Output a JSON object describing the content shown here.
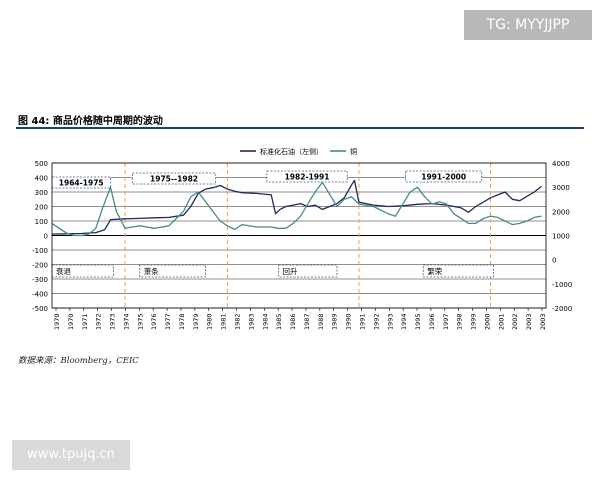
{
  "watermarks": {
    "top": "TG: MYYJJPP",
    "bottom": "www.tpujq.cn"
  },
  "figure": {
    "title": "图 44: 商品价格随中周期的波动",
    "source": "数据来源：Bloomberg，CEIC"
  },
  "colors": {
    "oil": "#1f2a5a",
    "copper": "#4a8a8a",
    "periods": "#f0a050",
    "box": "#3a5a8a",
    "rule": "#1f3f7a"
  },
  "chart_data": {
    "type": "line",
    "legend": {
      "position": "top",
      "entries": [
        "标准化石油（左侧）",
        "铜"
      ]
    },
    "x_ticks": [
      "1970",
      "1970",
      "1971",
      "1972",
      "1973",
      "1974",
      "1975",
      "1976",
      "1977",
      "1978",
      "1979",
      "1980",
      "1981",
      "1982",
      "1983",
      "1984",
      "1985",
      "1986",
      "1987",
      "1988",
      "1989",
      "1990",
      "1991",
      "1992",
      "1993",
      "1994",
      "1995",
      "1996",
      "1997",
      "1998",
      "1999",
      "2000",
      "2001",
      "2002",
      "2003",
      "2003"
    ],
    "y_left": {
      "lim": [
        -500,
        500
      ],
      "ticks": [
        500,
        400,
        300,
        200,
        100,
        0,
        -100,
        -200,
        -300,
        -400,
        -500
      ]
    },
    "y_right": {
      "lim": [
        -2000,
        4000
      ],
      "ticks": [
        4000,
        3000,
        2000,
        1000,
        0,
        -1000,
        -2000
      ]
    },
    "xlim": [
      1970,
      2003.8
    ],
    "grid": "horizontal",
    "period_lines": [
      1975,
      1982,
      1991,
      2000
    ],
    "period_labels": [
      "1964-1975",
      "1975--1982",
      "1982-1991",
      "1991-2000"
    ],
    "phase_labels": [
      "衰退",
      "萧条",
      "回升",
      "繁荣"
    ],
    "series": [
      {
        "name": "标准化石油（左侧）",
        "axis": "left",
        "x": [
          1970,
          1971,
          1972,
          1973,
          1973.6,
          1973.9,
          1974,
          1975,
          1976,
          1977,
          1978,
          1979,
          1979.5,
          1980,
          1980.5,
          1981,
          1981.5,
          1982,
          1982.5,
          1983,
          1984,
          1985,
          1985.3,
          1985.6,
          1986,
          1986.5,
          1987,
          1987.5,
          1988,
          1988.5,
          1989,
          1989.5,
          1990,
          1990.5,
          1990.7,
          1991,
          1992,
          1993,
          1994,
          1995,
          1996,
          1997,
          1998,
          1998.5,
          1999,
          1999.5,
          2000,
          2000.5,
          2001,
          2001.5,
          2002,
          2002.5,
          2003,
          2003.5
        ],
        "values": [
          10,
          12,
          14,
          20,
          40,
          90,
          110,
          115,
          118,
          122,
          125,
          140,
          200,
          290,
          320,
          330,
          345,
          320,
          305,
          295,
          290,
          280,
          150,
          180,
          200,
          210,
          220,
          200,
          210,
          180,
          200,
          220,
          260,
          350,
          380,
          230,
          210,
          200,
          205,
          215,
          220,
          210,
          190,
          160,
          200,
          230,
          260,
          280,
          300,
          250,
          240,
          270,
          300,
          340
        ]
      },
      {
        "name": "铜",
        "axis": "right",
        "x": [
          1970,
          1970.5,
          1971,
          1971.5,
          1972,
          1972.5,
          1973,
          1973.5,
          1974,
          1974.4,
          1975,
          1975.5,
          1976,
          1977,
          1978,
          1978.5,
          1979,
          1979.5,
          1980,
          1980.5,
          1981,
          1981.5,
          1982,
          1982.5,
          1983,
          1984,
          1985,
          1985.5,
          1986,
          1986.5,
          1987,
          1987.5,
          1988,
          1988.5,
          1989,
          1989.5,
          1990,
          1990.5,
          1991,
          1992,
          1993,
          1993.5,
          1994,
          1994.5,
          1995,
          1995.5,
          1996,
          1996.5,
          1997,
          1997.5,
          1998,
          1998.5,
          1999,
          1999.5,
          2000,
          2000.5,
          2001,
          2001.5,
          2002,
          2002.5,
          2003,
          2003.5
        ],
        "values": [
          1500,
          1300,
          1100,
          1000,
          1000,
          1050,
          1300,
          2200,
          3000,
          2000,
          1300,
          1350,
          1400,
          1300,
          1400,
          1700,
          2000,
          2600,
          2800,
          2400,
          2000,
          1600,
          1400,
          1250,
          1450,
          1350,
          1350,
          1300,
          1300,
          1500,
          1800,
          2300,
          2800,
          3200,
          2700,
          2200,
          2500,
          2600,
          2300,
          2200,
          1900,
          1800,
          2300,
          2800,
          3000,
          2600,
          2300,
          2400,
          2300,
          1900,
          1700,
          1500,
          1500,
          1700,
          1800,
          1750,
          1600,
          1450,
          1500,
          1600,
          1750,
          1800
        ]
      }
    ]
  }
}
